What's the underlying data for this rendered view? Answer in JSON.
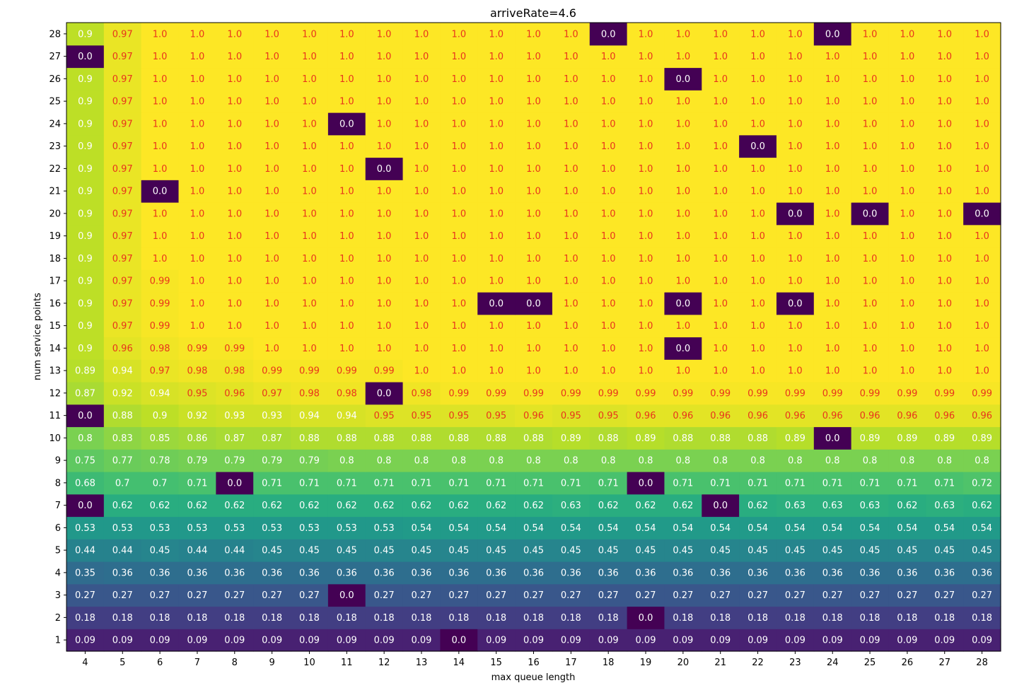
{
  "chart_data": {
    "type": "heatmap",
    "title": "arriveRate=4.6",
    "xlabel": "max queue length",
    "ylabel": "num service points",
    "x": [
      "4",
      "5",
      "6",
      "7",
      "8",
      "9",
      "10",
      "11",
      "12",
      "13",
      "14",
      "15",
      "16",
      "17",
      "18",
      "19",
      "20",
      "21",
      "22",
      "23",
      "24",
      "25",
      "26",
      "27",
      "28"
    ],
    "y": [
      "1",
      "2",
      "3",
      "4",
      "5",
      "6",
      "7",
      "8",
      "9",
      "10",
      "11",
      "12",
      "13",
      "14",
      "15",
      "16",
      "17",
      "18",
      "19",
      "20",
      "21",
      "22",
      "23",
      "24",
      "25",
      "26",
      "27",
      "28"
    ],
    "vmin": 0.0,
    "vmax": 1.0,
    "colormap": "viridis",
    "label_colors": {
      "light": "#ffffff",
      "dark": "#e8341c"
    },
    "label_threshold": 0.95,
    "values": [
      [
        "0.09",
        "0.09",
        "0.09",
        "0.09",
        "0.09",
        "0.09",
        "0.09",
        "0.09",
        "0.09",
        "0.09",
        "0.0",
        "0.09",
        "0.09",
        "0.09",
        "0.09",
        "0.09",
        "0.09",
        "0.09",
        "0.09",
        "0.09",
        "0.09",
        "0.09",
        "0.09",
        "0.09",
        "0.09"
      ],
      [
        "0.18",
        "0.18",
        "0.18",
        "0.18",
        "0.18",
        "0.18",
        "0.18",
        "0.18",
        "0.18",
        "0.18",
        "0.18",
        "0.18",
        "0.18",
        "0.18",
        "0.18",
        "0.0",
        "0.18",
        "0.18",
        "0.18",
        "0.18",
        "0.18",
        "0.18",
        "0.18",
        "0.18",
        "0.18"
      ],
      [
        "0.27",
        "0.27",
        "0.27",
        "0.27",
        "0.27",
        "0.27",
        "0.27",
        "0.0",
        "0.27",
        "0.27",
        "0.27",
        "0.27",
        "0.27",
        "0.27",
        "0.27",
        "0.27",
        "0.27",
        "0.27",
        "0.27",
        "0.27",
        "0.27",
        "0.27",
        "0.27",
        "0.27",
        "0.27"
      ],
      [
        "0.35",
        "0.36",
        "0.36",
        "0.36",
        "0.36",
        "0.36",
        "0.36",
        "0.36",
        "0.36",
        "0.36",
        "0.36",
        "0.36",
        "0.36",
        "0.36",
        "0.36",
        "0.36",
        "0.36",
        "0.36",
        "0.36",
        "0.36",
        "0.36",
        "0.36",
        "0.36",
        "0.36",
        "0.36"
      ],
      [
        "0.44",
        "0.44",
        "0.45",
        "0.44",
        "0.44",
        "0.45",
        "0.45",
        "0.45",
        "0.45",
        "0.45",
        "0.45",
        "0.45",
        "0.45",
        "0.45",
        "0.45",
        "0.45",
        "0.45",
        "0.45",
        "0.45",
        "0.45",
        "0.45",
        "0.45",
        "0.45",
        "0.45",
        "0.45"
      ],
      [
        "0.53",
        "0.53",
        "0.53",
        "0.53",
        "0.53",
        "0.53",
        "0.53",
        "0.53",
        "0.53",
        "0.54",
        "0.54",
        "0.54",
        "0.54",
        "0.54",
        "0.54",
        "0.54",
        "0.54",
        "0.54",
        "0.54",
        "0.54",
        "0.54",
        "0.54",
        "0.54",
        "0.54",
        "0.54"
      ],
      [
        "0.0",
        "0.62",
        "0.62",
        "0.62",
        "0.62",
        "0.62",
        "0.62",
        "0.62",
        "0.62",
        "0.62",
        "0.62",
        "0.62",
        "0.62",
        "0.63",
        "0.62",
        "0.62",
        "0.62",
        "0.0",
        "0.62",
        "0.63",
        "0.63",
        "0.63",
        "0.62",
        "0.63",
        "0.62"
      ],
      [
        "0.68",
        "0.7",
        "0.7",
        "0.71",
        "0.0",
        "0.71",
        "0.71",
        "0.71",
        "0.71",
        "0.71",
        "0.71",
        "0.71",
        "0.71",
        "0.71",
        "0.71",
        "0.0",
        "0.71",
        "0.71",
        "0.71",
        "0.71",
        "0.71",
        "0.71",
        "0.71",
        "0.71",
        "0.72"
      ],
      [
        "0.75",
        "0.77",
        "0.78",
        "0.79",
        "0.79",
        "0.79",
        "0.79",
        "0.8",
        "0.8",
        "0.8",
        "0.8",
        "0.8",
        "0.8",
        "0.8",
        "0.8",
        "0.8",
        "0.8",
        "0.8",
        "0.8",
        "0.8",
        "0.8",
        "0.8",
        "0.8",
        "0.8",
        "0.8"
      ],
      [
        "0.8",
        "0.83",
        "0.85",
        "0.86",
        "0.87",
        "0.87",
        "0.88",
        "0.88",
        "0.88",
        "0.88",
        "0.88",
        "0.88",
        "0.88",
        "0.89",
        "0.88",
        "0.89",
        "0.88",
        "0.88",
        "0.88",
        "0.89",
        "0.0",
        "0.89",
        "0.89",
        "0.89",
        "0.89"
      ],
      [
        "0.0",
        "0.88",
        "0.9",
        "0.92",
        "0.93",
        "0.93",
        "0.94",
        "0.94",
        "0.95",
        "0.95",
        "0.95",
        "0.95",
        "0.96",
        "0.95",
        "0.95",
        "0.96",
        "0.96",
        "0.96",
        "0.96",
        "0.96",
        "0.96",
        "0.96",
        "0.96",
        "0.96",
        "0.96"
      ],
      [
        "0.87",
        "0.92",
        "0.94",
        "0.95",
        "0.96",
        "0.97",
        "0.98",
        "0.98",
        "0.0",
        "0.98",
        "0.99",
        "0.99",
        "0.99",
        "0.99",
        "0.99",
        "0.99",
        "0.99",
        "0.99",
        "0.99",
        "0.99",
        "0.99",
        "0.99",
        "0.99",
        "0.99",
        "0.99"
      ],
      [
        "0.89",
        "0.94",
        "0.97",
        "0.98",
        "0.98",
        "0.99",
        "0.99",
        "0.99",
        "0.99",
        "1.0",
        "1.0",
        "1.0",
        "1.0",
        "1.0",
        "1.0",
        "1.0",
        "1.0",
        "1.0",
        "1.0",
        "1.0",
        "1.0",
        "1.0",
        "1.0",
        "1.0",
        "1.0"
      ],
      [
        "0.9",
        "0.96",
        "0.98",
        "0.99",
        "0.99",
        "1.0",
        "1.0",
        "1.0",
        "1.0",
        "1.0",
        "1.0",
        "1.0",
        "1.0",
        "1.0",
        "1.0",
        "1.0",
        "0.0",
        "1.0",
        "1.0",
        "1.0",
        "1.0",
        "1.0",
        "1.0",
        "1.0",
        "1.0"
      ],
      [
        "0.9",
        "0.97",
        "0.99",
        "1.0",
        "1.0",
        "1.0",
        "1.0",
        "1.0",
        "1.0",
        "1.0",
        "1.0",
        "1.0",
        "1.0",
        "1.0",
        "1.0",
        "1.0",
        "1.0",
        "1.0",
        "1.0",
        "1.0",
        "1.0",
        "1.0",
        "1.0",
        "1.0",
        "1.0"
      ],
      [
        "0.9",
        "0.97",
        "0.99",
        "1.0",
        "1.0",
        "1.0",
        "1.0",
        "1.0",
        "1.0",
        "1.0",
        "1.0",
        "0.0",
        "0.0",
        "1.0",
        "1.0",
        "1.0",
        "0.0",
        "1.0",
        "1.0",
        "0.0",
        "1.0",
        "1.0",
        "1.0",
        "1.0",
        "1.0"
      ],
      [
        "0.9",
        "0.97",
        "0.99",
        "1.0",
        "1.0",
        "1.0",
        "1.0",
        "1.0",
        "1.0",
        "1.0",
        "1.0",
        "1.0",
        "1.0",
        "1.0",
        "1.0",
        "1.0",
        "1.0",
        "1.0",
        "1.0",
        "1.0",
        "1.0",
        "1.0",
        "1.0",
        "1.0",
        "1.0"
      ],
      [
        "0.9",
        "0.97",
        "1.0",
        "1.0",
        "1.0",
        "1.0",
        "1.0",
        "1.0",
        "1.0",
        "1.0",
        "1.0",
        "1.0",
        "1.0",
        "1.0",
        "1.0",
        "1.0",
        "1.0",
        "1.0",
        "1.0",
        "1.0",
        "1.0",
        "1.0",
        "1.0",
        "1.0",
        "1.0"
      ],
      [
        "0.9",
        "0.97",
        "1.0",
        "1.0",
        "1.0",
        "1.0",
        "1.0",
        "1.0",
        "1.0",
        "1.0",
        "1.0",
        "1.0",
        "1.0",
        "1.0",
        "1.0",
        "1.0",
        "1.0",
        "1.0",
        "1.0",
        "1.0",
        "1.0",
        "1.0",
        "1.0",
        "1.0",
        "1.0"
      ],
      [
        "0.9",
        "0.97",
        "1.0",
        "1.0",
        "1.0",
        "1.0",
        "1.0",
        "1.0",
        "1.0",
        "1.0",
        "1.0",
        "1.0",
        "1.0",
        "1.0",
        "1.0",
        "1.0",
        "1.0",
        "1.0",
        "1.0",
        "0.0",
        "1.0",
        "0.0",
        "1.0",
        "1.0",
        "0.0"
      ],
      [
        "0.9",
        "0.97",
        "0.0",
        "1.0",
        "1.0",
        "1.0",
        "1.0",
        "1.0",
        "1.0",
        "1.0",
        "1.0",
        "1.0",
        "1.0",
        "1.0",
        "1.0",
        "1.0",
        "1.0",
        "1.0",
        "1.0",
        "1.0",
        "1.0",
        "1.0",
        "1.0",
        "1.0",
        "1.0"
      ],
      [
        "0.9",
        "0.97",
        "1.0",
        "1.0",
        "1.0",
        "1.0",
        "1.0",
        "1.0",
        "0.0",
        "1.0",
        "1.0",
        "1.0",
        "1.0",
        "1.0",
        "1.0",
        "1.0",
        "1.0",
        "1.0",
        "1.0",
        "1.0",
        "1.0",
        "1.0",
        "1.0",
        "1.0",
        "1.0"
      ],
      [
        "0.9",
        "0.97",
        "1.0",
        "1.0",
        "1.0",
        "1.0",
        "1.0",
        "1.0",
        "1.0",
        "1.0",
        "1.0",
        "1.0",
        "1.0",
        "1.0",
        "1.0",
        "1.0",
        "1.0",
        "1.0",
        "0.0",
        "1.0",
        "1.0",
        "1.0",
        "1.0",
        "1.0",
        "1.0"
      ],
      [
        "0.9",
        "0.97",
        "1.0",
        "1.0",
        "1.0",
        "1.0",
        "1.0",
        "0.0",
        "1.0",
        "1.0",
        "1.0",
        "1.0",
        "1.0",
        "1.0",
        "1.0",
        "1.0",
        "1.0",
        "1.0",
        "1.0",
        "1.0",
        "1.0",
        "1.0",
        "1.0",
        "1.0",
        "1.0"
      ],
      [
        "0.9",
        "0.97",
        "1.0",
        "1.0",
        "1.0",
        "1.0",
        "1.0",
        "1.0",
        "1.0",
        "1.0",
        "1.0",
        "1.0",
        "1.0",
        "1.0",
        "1.0",
        "1.0",
        "1.0",
        "1.0",
        "1.0",
        "1.0",
        "1.0",
        "1.0",
        "1.0",
        "1.0",
        "1.0"
      ],
      [
        "0.9",
        "0.97",
        "1.0",
        "1.0",
        "1.0",
        "1.0",
        "1.0",
        "1.0",
        "1.0",
        "1.0",
        "1.0",
        "1.0",
        "1.0",
        "1.0",
        "1.0",
        "1.0",
        "0.0",
        "1.0",
        "1.0",
        "1.0",
        "1.0",
        "1.0",
        "1.0",
        "1.0",
        "1.0"
      ],
      [
        "0.0",
        "0.97",
        "1.0",
        "1.0",
        "1.0",
        "1.0",
        "1.0",
        "1.0",
        "1.0",
        "1.0",
        "1.0",
        "1.0",
        "1.0",
        "1.0",
        "1.0",
        "1.0",
        "1.0",
        "1.0",
        "1.0",
        "1.0",
        "1.0",
        "1.0",
        "1.0",
        "1.0",
        "1.0"
      ],
      [
        "0.9",
        "0.97",
        "1.0",
        "1.0",
        "1.0",
        "1.0",
        "1.0",
        "1.0",
        "1.0",
        "1.0",
        "1.0",
        "1.0",
        "1.0",
        "1.0",
        "0.0",
        "1.0",
        "1.0",
        "1.0",
        "1.0",
        "1.0",
        "0.0",
        "1.0",
        "1.0",
        "1.0",
        "1.0"
      ]
    ]
  }
}
